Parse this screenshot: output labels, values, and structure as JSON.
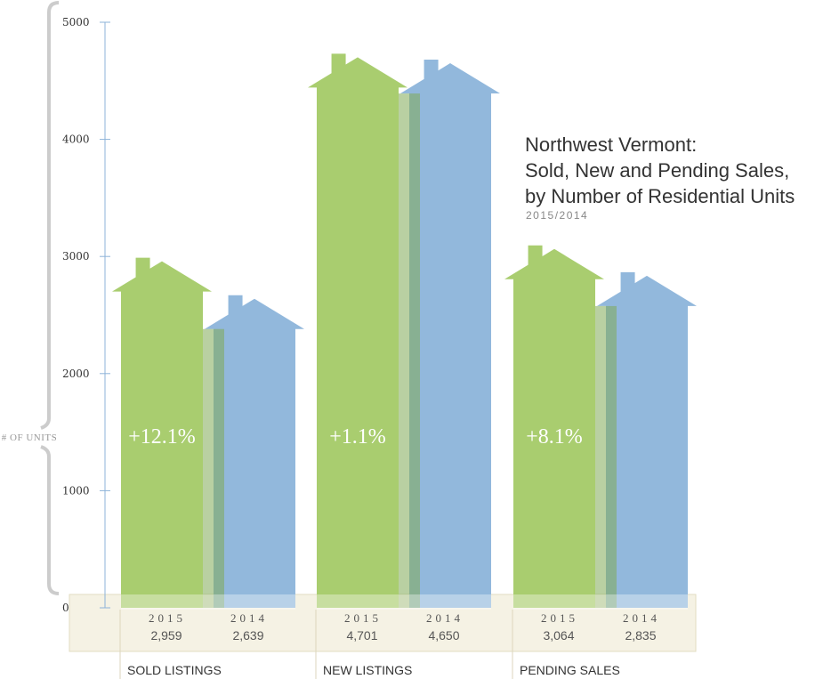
{
  "chart_data": {
    "type": "bar",
    "title_lines": [
      "Northwest Vermont:",
      "Sold, New and Pending Sales,",
      "by Number of Residential Units"
    ],
    "subtitle": "2015/2014",
    "ylabel": "# OF UNITS",
    "ylim": [
      0,
      5000
    ],
    "yticks": [
      "0",
      "1000",
      "2000",
      "3000",
      "4000",
      "5000"
    ],
    "categories": [
      "SOLD LISTINGS",
      "NEW LISTINGS",
      "PENDING SALES"
    ],
    "series": [
      {
        "name": "2015",
        "values": [
          2959,
          4701,
          3064
        ],
        "labels": [
          "2,959",
          "4,701",
          "3,064"
        ],
        "color": "#a3c964"
      },
      {
        "name": "2014",
        "values": [
          2639,
          4650,
          2835
        ],
        "labels": [
          "2,639",
          "4,650",
          "2,835"
        ],
        "color": "#92b8dc"
      }
    ],
    "year_labels": [
      "2015",
      "2014"
    ],
    "percent_changes": [
      "+12.1%",
      "+1.1%",
      "+8.1%"
    ],
    "colors": {
      "band": "#f5f2e4",
      "axis": "#8db3d9",
      "bracket": "#cccccc"
    }
  }
}
